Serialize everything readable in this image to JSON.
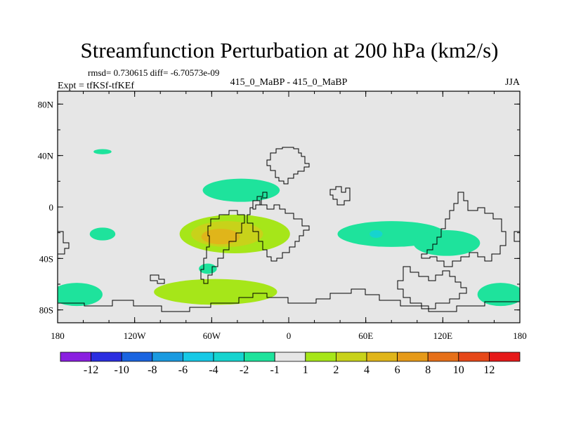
{
  "chart_data": {
    "type": "contour-map",
    "title": "Streamfunction Perturbation at 200 hPa (km2/s)",
    "stats_text": "rmsd= 0.730615 diff= -6.70573e-09",
    "experiment": "Expt = tfKSf-tfKEf",
    "center_label": "415_0_MaBP - 415_0_MaBP",
    "season": "JJA",
    "xlim": [
      -180,
      180
    ],
    "ylim": [
      -90,
      90
    ],
    "x_ticks": [
      {
        "value": -180,
        "label": "180"
      },
      {
        "value": -120,
        "label": "120W"
      },
      {
        "value": -60,
        "label": "60W"
      },
      {
        "value": 0,
        "label": "0"
      },
      {
        "value": 60,
        "label": "60E"
      },
      {
        "value": 120,
        "label": "120E"
      },
      {
        "value": 180,
        "label": "180"
      }
    ],
    "y_ticks": [
      {
        "value": 80,
        "label": "80N"
      },
      {
        "value": 40,
        "label": "40N"
      },
      {
        "value": 0,
        "label": "0"
      },
      {
        "value": -40,
        "label": "40S"
      },
      {
        "value": -80,
        "label": "80S"
      }
    ],
    "background_color": "#e6e6e6",
    "colorbar": {
      "colors": [
        "#8a1fe0",
        "#2b2ee0",
        "#1a64e0",
        "#1a9ae0",
        "#17c9e6",
        "#16d4cf",
        "#1ee39c",
        "#e6e6e6",
        "#a6e619",
        "#c8d21a",
        "#e0b51a",
        "#e69a19",
        "#e67019",
        "#e64819",
        "#e61919"
      ],
      "labels": [
        "-12",
        "-10",
        "-8",
        "-6",
        "-4",
        "-2",
        "-1",
        "1",
        "2",
        "4",
        "6",
        "8",
        "10",
        "12"
      ]
    },
    "anomalies": [
      {
        "level": -1,
        "lon": -165,
        "lat": -68,
        "rlon": 20,
        "rlat": 9
      },
      {
        "level": -1,
        "lon": 165,
        "lat": -68,
        "rlon": 18,
        "rlat": 9
      },
      {
        "level": -1,
        "lon": -145,
        "lat": -21,
        "rlon": 10,
        "rlat": 5
      },
      {
        "level": -1,
        "lon": -145,
        "lat": 43,
        "rlon": 7,
        "rlat": 2
      },
      {
        "level": -1,
        "lon": -63,
        "lat": -48,
        "rlon": 7,
        "rlat": 4
      },
      {
        "level": -1,
        "lon": -37,
        "lat": 13,
        "rlon": 30,
        "rlat": 9
      },
      {
        "level": -1,
        "lon": 80,
        "lat": -21,
        "rlon": 42,
        "rlat": 10
      },
      {
        "level": -1,
        "lon": 123,
        "lat": -28,
        "rlon": 26,
        "rlat": 10
      },
      {
        "level": -2,
        "lon": 68,
        "lat": -21,
        "rlon": 5,
        "rlat": 3
      },
      {
        "level": 1,
        "lon": -42,
        "lat": -21,
        "rlon": 43,
        "rlat": 15
      },
      {
        "level": 2,
        "lon": -48,
        "lat": -21,
        "rlon": 28,
        "rlat": 10
      },
      {
        "level": 4,
        "lon": -53,
        "lat": -23,
        "rlon": 15,
        "rlat": 6
      },
      {
        "level": 1,
        "lon": -57,
        "lat": -66,
        "rlon": 48,
        "rlat": 10
      }
    ]
  }
}
